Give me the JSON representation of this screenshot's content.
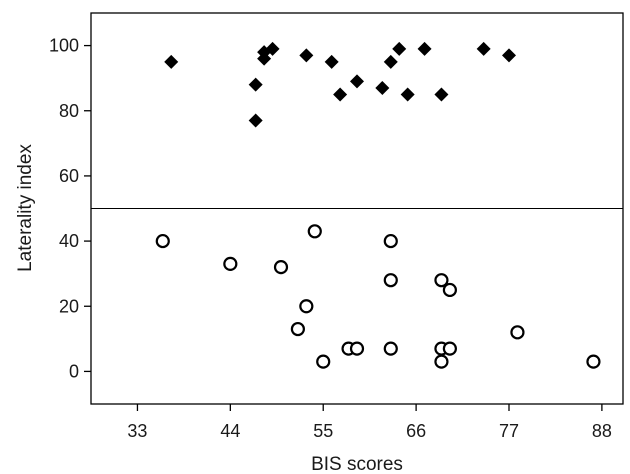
{
  "chart_data": {
    "type": "scatter",
    "title": "",
    "xlabel": "BIS scores",
    "ylabel": "Laterality index",
    "xlim": [
      27.5,
      90.5
    ],
    "ylim": [
      -10,
      110
    ],
    "xticks": [
      33,
      44,
      55,
      66,
      77,
      88
    ],
    "yticks": [
      0,
      20,
      40,
      60,
      80,
      100
    ],
    "grid": false,
    "legend": "none",
    "reference_line": {
      "y": 50
    },
    "colors": {
      "marker": "#000000",
      "axis": "#000000"
    },
    "series": [
      {
        "marker": "filled-diamond",
        "points": [
          [
            37,
            95
          ],
          [
            47,
            88
          ],
          [
            47,
            77
          ],
          [
            48,
            98
          ],
          [
            48,
            96
          ],
          [
            49,
            99
          ],
          [
            53,
            97
          ],
          [
            56,
            95
          ],
          [
            57,
            85
          ],
          [
            59,
            89
          ],
          [
            62,
            87
          ],
          [
            63,
            95
          ],
          [
            64,
            99
          ],
          [
            65,
            85
          ],
          [
            67,
            99
          ],
          [
            69,
            85
          ],
          [
            74,
            99
          ],
          [
            77,
            97
          ]
        ]
      },
      {
        "marker": "open-circle",
        "points": [
          [
            36,
            40
          ],
          [
            44,
            33
          ],
          [
            50,
            32
          ],
          [
            52,
            13
          ],
          [
            53,
            20
          ],
          [
            54,
            43
          ],
          [
            55,
            3
          ],
          [
            58,
            7
          ],
          [
            59,
            7
          ],
          [
            63,
            40
          ],
          [
            63,
            28
          ],
          [
            63,
            7
          ],
          [
            69,
            28
          ],
          [
            69,
            7
          ],
          [
            69,
            3
          ],
          [
            70,
            25
          ],
          [
            70,
            7
          ],
          [
            78,
            12
          ],
          [
            87,
            3
          ]
        ]
      }
    ]
  }
}
